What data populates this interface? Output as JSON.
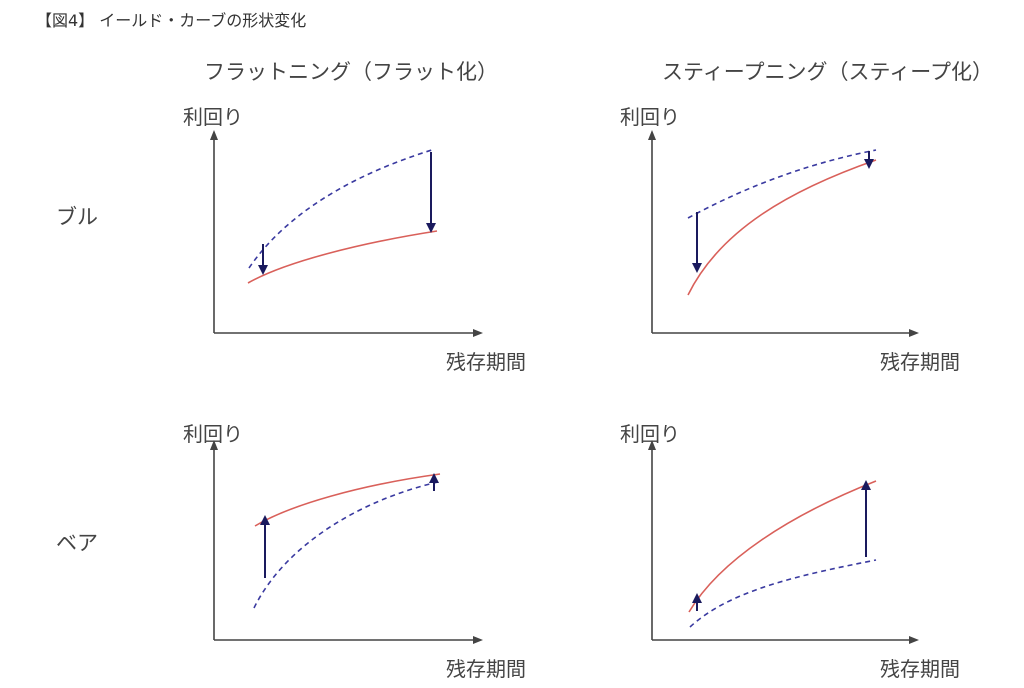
{
  "figure_title": "【図4】 イールド・カーブの形状変化",
  "columns": [
    {
      "heading": "フラットニング（フラット化）"
    },
    {
      "heading": "スティープニング（スティープ化）"
    }
  ],
  "rows": [
    {
      "label": "ブル"
    },
    {
      "label": "ベア"
    }
  ],
  "axis": {
    "y_label": "利回り",
    "x_label": "残存期間"
  },
  "colors": {
    "new_curve": "#d9605a",
    "old_curve": "#3a3aa0",
    "arrow": "#1a1a5e",
    "axis": "#444444"
  },
  "panels": [
    {
      "id": "bull-flattening",
      "old_curve": "upper",
      "arrow_direction": "down",
      "arrow_size_short_end": "small",
      "arrow_size_long_end": "large"
    },
    {
      "id": "bull-steepening",
      "old_curve": "upper",
      "arrow_direction": "down",
      "arrow_size_short_end": "large",
      "arrow_size_long_end": "small"
    },
    {
      "id": "bear-flattening",
      "old_curve": "lower",
      "arrow_direction": "up",
      "arrow_size_short_end": "large",
      "arrow_size_long_end": "small"
    },
    {
      "id": "bear-steepening",
      "old_curve": "lower",
      "arrow_direction": "up",
      "arrow_size_short_end": "small",
      "arrow_size_long_end": "large"
    }
  ]
}
